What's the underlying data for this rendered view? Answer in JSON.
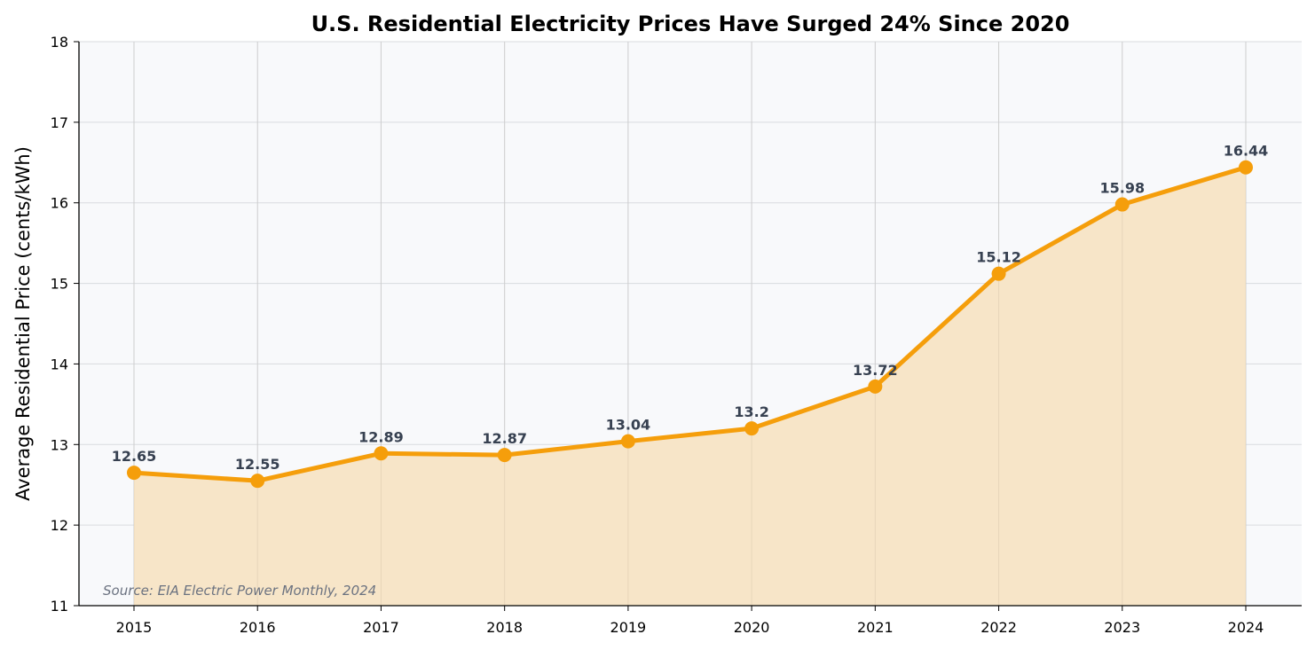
{
  "chart_data": {
    "type": "line",
    "title": "U.S. Residential Electricity Prices Have Surged 24% Since 2020",
    "xlabel": "",
    "ylabel": "Average Residential Price (cents/kWh)",
    "x": [
      2015,
      2016,
      2017,
      2018,
      2019,
      2020,
      2021,
      2022,
      2023,
      2024
    ],
    "series": [
      {
        "values": [
          12.65,
          12.55,
          12.89,
          12.87,
          13.04,
          13.2,
          13.72,
          15.12,
          15.98,
          16.44
        ],
        "data_labels": [
          "12.65",
          "12.55",
          "12.89",
          "12.87",
          "13.04",
          "13.2",
          "13.72",
          "15.12",
          "15.98",
          "16.44"
        ]
      }
    ],
    "ylim": [
      11,
      18
    ],
    "yticks": [
      "11",
      "12",
      "13",
      "14",
      "15",
      "16",
      "17",
      "18"
    ],
    "xticks": [
      "2015",
      "2016",
      "2017",
      "2018",
      "2019",
      "2020",
      "2021",
      "2022",
      "2023",
      "2024"
    ],
    "grid": true,
    "area_fill": true,
    "annotation": "Source: EIA Electric Power Monthly, 2024",
    "colors": {
      "line": "#f59e0b",
      "fill": "#f7e5c8",
      "background": "#f8f9fb",
      "data_label": "#374151",
      "annotation": "#6b7280"
    }
  }
}
